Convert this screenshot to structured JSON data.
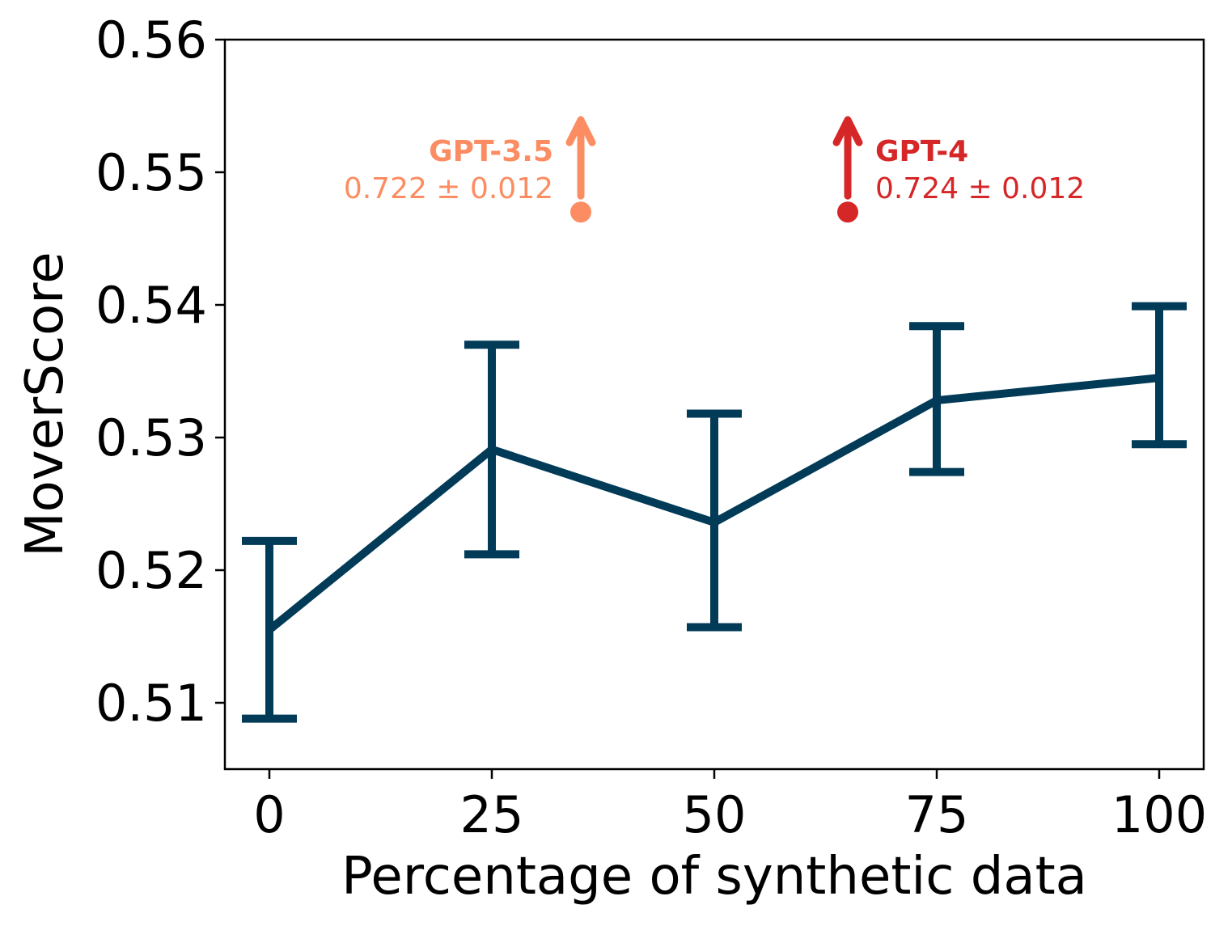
{
  "chart_data": {
    "type": "line",
    "xlabel": "Percentage of synthetic data",
    "ylabel": "MoverScore",
    "x": [
      0,
      25,
      50,
      75,
      100
    ],
    "series": [
      {
        "values": [
          0.5155,
          0.5291,
          0.5236,
          0.5328,
          0.5345
        ],
        "err_low": [
          0.5088,
          0.5212,
          0.5157,
          0.5274,
          0.5295
        ],
        "err_high": [
          0.5222,
          0.537,
          0.5318,
          0.5384,
          0.5399
        ],
        "color": "#023b57"
      }
    ],
    "xlim": [
      -5,
      105
    ],
    "ylim": [
      0.505,
      0.56
    ],
    "xticks": [
      "0",
      "25",
      "50",
      "75",
      "100"
    ],
    "yticks": [
      "0.51",
      "0.52",
      "0.53",
      "0.54",
      "0.55",
      "0.56"
    ],
    "yticks_values": [
      0.51,
      0.52,
      0.53,
      0.54,
      0.55,
      0.56
    ],
    "grid": false,
    "annotations": [
      {
        "name": "GPT-3.5",
        "value_text": "0.722 ± 0.012",
        "x": 35,
        "y": 0.547,
        "color": "#fc8d62",
        "text_side": "left"
      },
      {
        "name": "GPT-4",
        "value_text": "0.724 ± 0.012",
        "x": 65,
        "y": 0.547,
        "color": "#d62728",
        "text_side": "right"
      }
    ]
  }
}
